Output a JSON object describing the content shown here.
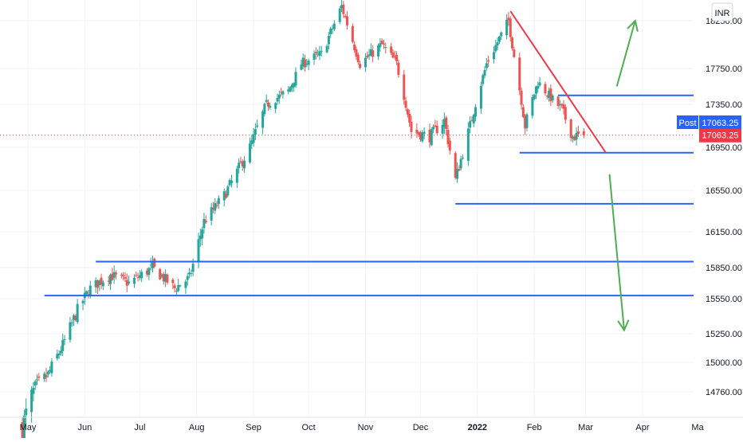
{
  "chart_data": {
    "type": "candlestick",
    "currency": "INR",
    "y_ticks": [
      18250,
      17750,
      17350,
      16950,
      16550,
      16150,
      15850,
      15550,
      15250,
      15000,
      14760
    ],
    "y_tick_labels": [
      "18250.00",
      "17750.00",
      "17350.00",
      "16950.00",
      "16550.00",
      "16150.00",
      "15850.00",
      "15550.00",
      "15250.00",
      "15000.00",
      "14760.00"
    ],
    "x_labels": [
      "May",
      "Jun",
      "Jul",
      "Aug",
      "Sep",
      "Oct",
      "Nov",
      "Dec",
      "2022",
      "Feb",
      "Mar",
      "Apr",
      "Ma"
    ],
    "x_label_dates": [
      "2021-05-01",
      "2021-06-01",
      "2021-07-01",
      "2021-08-01",
      "2021-09-01",
      "2021-10-01",
      "2021-11-01",
      "2021-12-01",
      "2022-01-01",
      "2022-02-01",
      "2022-03-01",
      "2022-04-01",
      "2022-05-01"
    ],
    "last_price": {
      "label": "Post",
      "value": "17063.25",
      "price": 17063.25
    },
    "price_label": {
      "value": "17063.25"
    },
    "anchor_points": [
      {
        "date": "2021-04-28",
        "close": 14600
      },
      {
        "date": "2021-05-05",
        "close": 14800
      },
      {
        "date": "2021-05-12",
        "close": 14900
      },
      {
        "date": "2021-05-20",
        "close": 15150
      },
      {
        "date": "2021-05-28",
        "close": 15450
      },
      {
        "date": "2021-06-04",
        "close": 15650
      },
      {
        "date": "2021-06-15",
        "close": 15780
      },
      {
        "date": "2021-06-25",
        "close": 15700
      },
      {
        "date": "2021-07-08",
        "close": 15850
      },
      {
        "date": "2021-07-20",
        "close": 15650
      },
      {
        "date": "2021-07-28",
        "close": 15750
      },
      {
        "date": "2021-08-05",
        "close": 16250
      },
      {
        "date": "2021-08-16",
        "close": 16500
      },
      {
        "date": "2021-08-30",
        "close": 16950
      },
      {
        "date": "2021-09-08",
        "close": 17350
      },
      {
        "date": "2021-09-20",
        "close": 17500
      },
      {
        "date": "2021-09-27",
        "close": 17800
      },
      {
        "date": "2021-10-08",
        "close": 17900
      },
      {
        "date": "2021-10-19",
        "close": 18400
      },
      {
        "date": "2021-10-29",
        "close": 17800
      },
      {
        "date": "2021-11-10",
        "close": 18000
      },
      {
        "date": "2021-11-18",
        "close": 17800
      },
      {
        "date": "2021-11-26",
        "close": 17100
      },
      {
        "date": "2021-12-06",
        "close": 17050
      },
      {
        "date": "2021-12-14",
        "close": 17200
      },
      {
        "date": "2021-12-20",
        "close": 16650
      },
      {
        "date": "2021-12-28",
        "close": 17150
      },
      {
        "date": "2022-01-06",
        "close": 17800
      },
      {
        "date": "2022-01-18",
        "close": 18250
      },
      {
        "date": "2022-01-27",
        "close": 17150
      },
      {
        "date": "2022-02-03",
        "close": 17600
      },
      {
        "date": "2022-02-11",
        "close": 17400
      },
      {
        "date": "2022-02-16",
        "close": 17300
      },
      {
        "date": "2022-02-22",
        "close": 17050
      },
      {
        "date": "2022-02-28",
        "close": 17063.25
      }
    ],
    "horizontal_lines": [
      {
        "price": 17450,
        "start": "2022-02-14",
        "end": "2022-05-01"
      },
      {
        "price": 16900,
        "start": "2022-01-24",
        "end": "2022-05-01"
      },
      {
        "price": 16420,
        "start": "2021-12-20",
        "end": "2022-05-01"
      },
      {
        "price": 15900,
        "start": "2021-06-07",
        "end": "2022-05-01"
      },
      {
        "price": 15580,
        "start": "2021-05-10",
        "end": "2022-05-01"
      }
    ],
    "trendline": {
      "start_date": "2022-01-19",
      "start_price": 18350,
      "end_date": "2022-03-12",
      "end_price": 16900
    },
    "arrows": [
      {
        "direction": "up",
        "from_date": "2022-03-18",
        "from_price": 17550,
        "to_date": "2022-03-28",
        "to_price": 18250
      },
      {
        "direction": "down",
        "from_date": "2022-03-14",
        "from_price": 16700,
        "to_date": "2022-03-22",
        "to_price": 15280
      }
    ],
    "colors": {
      "up": "#26a69a",
      "down": "#ef5350",
      "level_line": "#2962ff",
      "trendline": "#f23645",
      "arrow": "#4caf50",
      "post_badge": "#2962ff",
      "price_badge": "#f23645",
      "grid": "#f0f3fa",
      "axis_text": "#131722"
    },
    "grid": true,
    "legend": "none"
  }
}
